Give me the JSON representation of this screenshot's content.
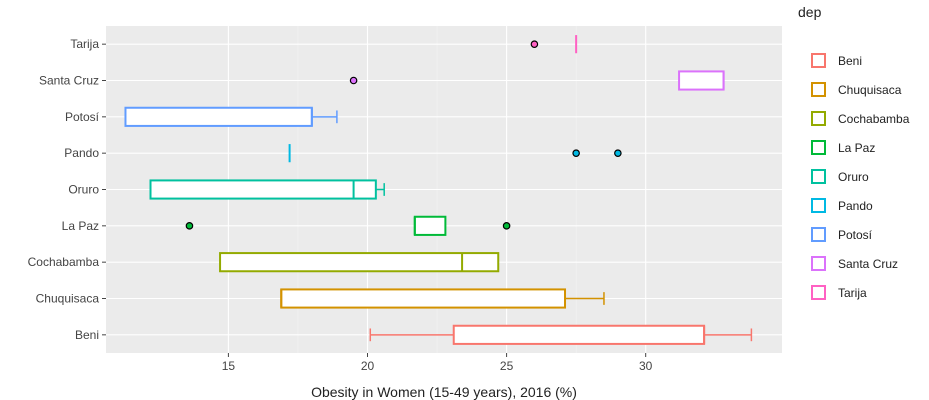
{
  "chart_data": {
    "type": "boxplot",
    "title": "",
    "xlabel": "Obesity in Women (15-49 years), 2016 (%)",
    "ylabel": "",
    "xlim": [
      10.6,
      34.9
    ],
    "xticks": [
      15,
      20,
      25,
      30
    ],
    "xtick_labels": [
      "15",
      "20",
      "25",
      "30"
    ],
    "grid": true,
    "legend_title": "dep",
    "legend_position": "right",
    "categories": [
      "Beni",
      "Chuquisaca",
      "Cochabamba",
      "La Paz",
      "Oruro",
      "Pando",
      "Potosí",
      "Santa Cruz",
      "Tarija"
    ],
    "series": [
      {
        "name": "Beni",
        "color": "#F8766D",
        "whisker_low": 20.1,
        "q1": 23.1,
        "median": 32.1,
        "q3": 32.1,
        "whisker_high": 33.8,
        "outliers": []
      },
      {
        "name": "Chuquisaca",
        "color": "#D39200",
        "whisker_low": 16.9,
        "q1": 16.9,
        "median": 16.9,
        "q3": 27.1,
        "whisker_high": 28.5,
        "outliers": []
      },
      {
        "name": "Cochabamba",
        "color": "#93AA00",
        "whisker_low": 14.7,
        "q1": 14.7,
        "median": 23.4,
        "q3": 24.7,
        "whisker_high": 24.7,
        "outliers": []
      },
      {
        "name": "La Paz",
        "color": "#00BA38",
        "whisker_low": 21.7,
        "q1": 21.7,
        "median": 21.7,
        "q3": 22.8,
        "whisker_high": 22.8,
        "outliers": [
          13.6,
          25.0
        ]
      },
      {
        "name": "Oruro",
        "color": "#00C19F",
        "whisker_low": 12.2,
        "q1": 12.2,
        "median": 19.5,
        "q3": 20.3,
        "whisker_high": 20.6,
        "outliers": []
      },
      {
        "name": "Pando",
        "color": "#00B9E3",
        "whisker_low": 17.2,
        "q1": 17.2,
        "median": 17.2,
        "q3": 17.2,
        "whisker_high": 17.2,
        "outliers": [
          27.5,
          29.0
        ]
      },
      {
        "name": "Potosí",
        "color": "#619CFF",
        "whisker_low": 11.3,
        "q1": 11.3,
        "median": 18.0,
        "q3": 18.0,
        "whisker_high": 18.9,
        "outliers": []
      },
      {
        "name": "Santa Cruz",
        "color": "#DB72FB",
        "whisker_low": 31.2,
        "q1": 31.2,
        "median": 32.8,
        "q3": 32.8,
        "whisker_high": 32.8,
        "outliers": [
          19.5
        ]
      },
      {
        "name": "Tarija",
        "color": "#FF61C3",
        "whisker_low": 27.5,
        "q1": 27.5,
        "median": 27.5,
        "q3": 27.5,
        "whisker_high": 27.5,
        "outliers": [
          26.0
        ]
      }
    ]
  }
}
